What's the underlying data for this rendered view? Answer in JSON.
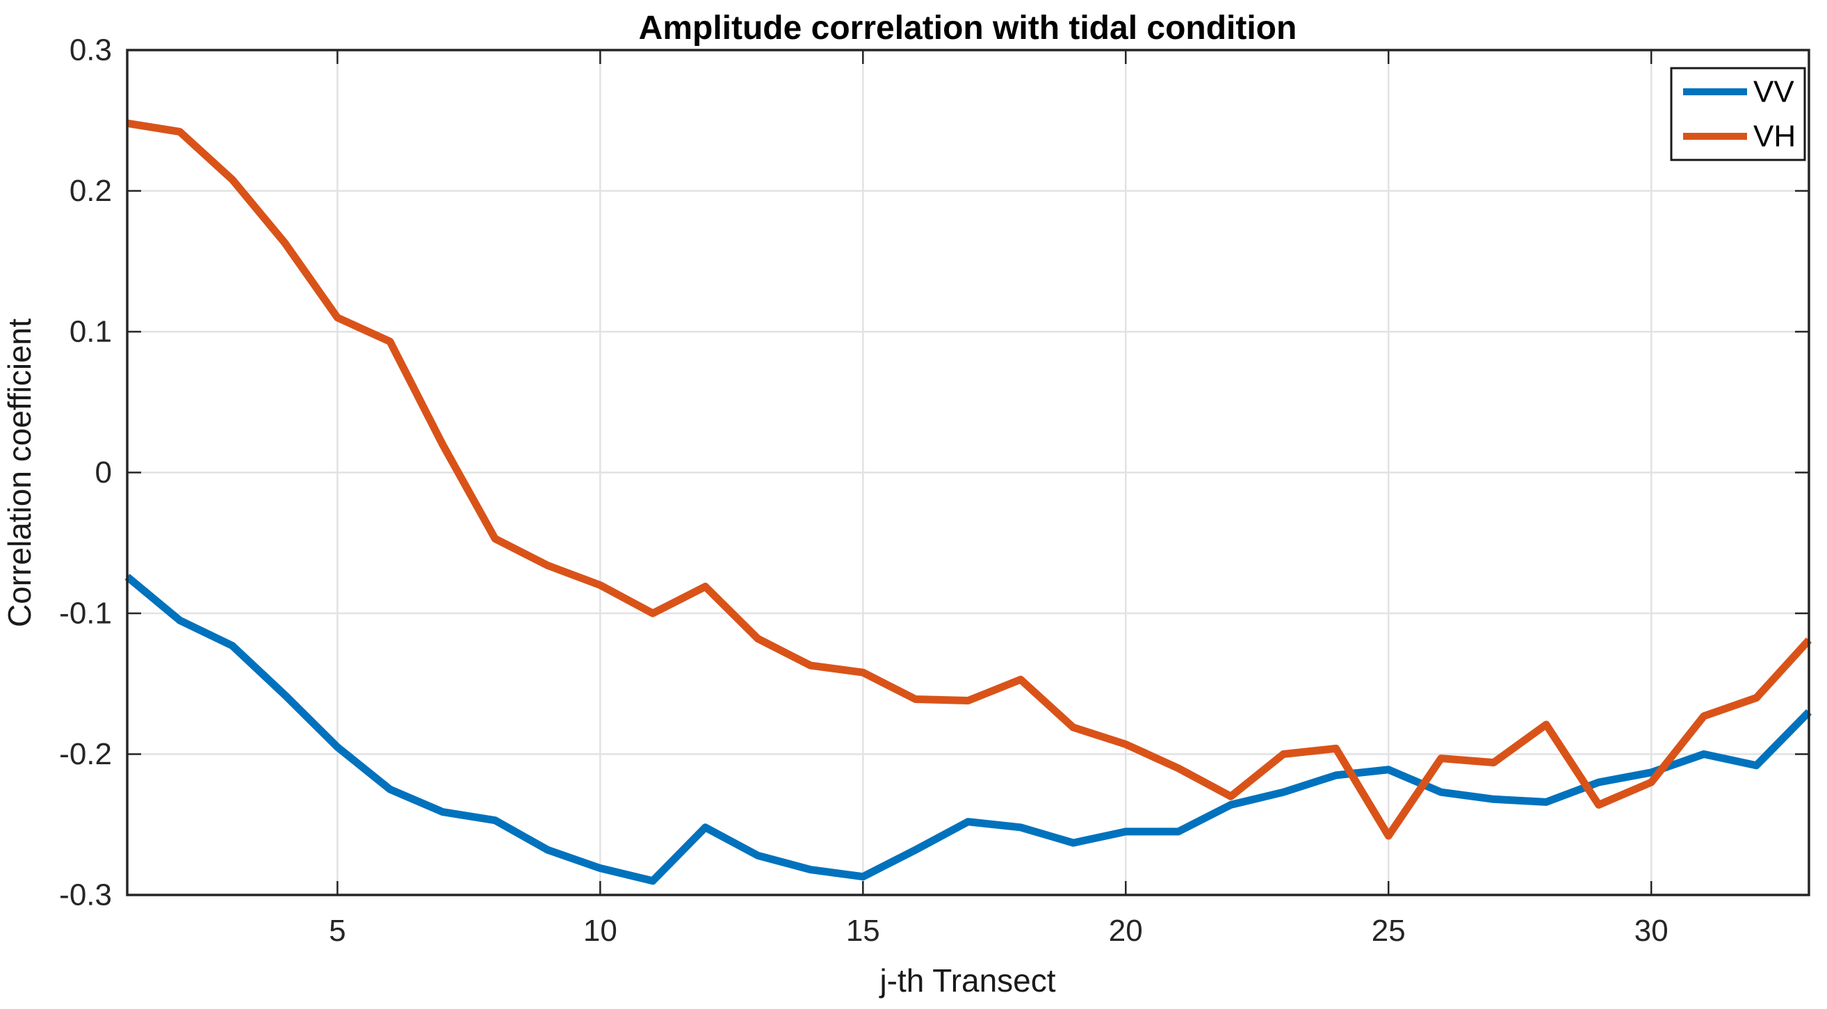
{
  "figure": {
    "title": "Amplitude correlation with tidal condition",
    "xlabel": "j-th Transect",
    "ylabel": "Correlation coefficient"
  },
  "chart_data": {
    "type": "line",
    "title": "Amplitude correlation with tidal condition",
    "xlabel": "j-th Transect",
    "ylabel": "Correlation coefficient",
    "xlim": [
      1,
      33
    ],
    "ylim": [
      -0.3,
      0.3
    ],
    "xticks": [
      5,
      10,
      15,
      20,
      25,
      30
    ],
    "yticks": [
      -0.3,
      -0.2,
      -0.1,
      0,
      0.1,
      0.2,
      0.3
    ],
    "ytick_labels": [
      "-0.3",
      "-0.2",
      "-0.1",
      "0",
      "0.1",
      "0.2",
      "0.3"
    ],
    "grid": true,
    "legend_position": "top-right",
    "axis_color": "#262626",
    "grid_color": "#e2e2e2",
    "x": [
      1,
      2,
      3,
      4,
      5,
      6,
      7,
      8,
      9,
      10,
      11,
      12,
      13,
      14,
      15,
      16,
      17,
      18,
      19,
      20,
      21,
      22,
      23,
      24,
      25,
      26,
      27,
      28,
      29,
      30,
      31,
      32,
      33
    ],
    "series": [
      {
        "name": "VV",
        "color": "#0072BD",
        "values": [
          -0.074,
          -0.105,
          -0.123,
          -0.158,
          -0.195,
          -0.225,
          -0.241,
          -0.247,
          -0.268,
          -0.281,
          -0.29,
          -0.252,
          -0.272,
          -0.282,
          -0.287,
          -0.268,
          -0.248,
          -0.252,
          -0.263,
          -0.255,
          -0.255,
          -0.236,
          -0.227,
          -0.215,
          -0.211,
          -0.227,
          -0.232,
          -0.234,
          -0.22,
          -0.213,
          -0.2,
          -0.208,
          -0.17
        ]
      },
      {
        "name": "VH",
        "color": "#D95319",
        "values": [
          0.248,
          0.242,
          0.208,
          0.163,
          0.11,
          0.093,
          0.02,
          -0.047,
          -0.066,
          -0.08,
          -0.1,
          -0.081,
          -0.118,
          -0.137,
          -0.142,
          -0.161,
          -0.162,
          -0.147,
          -0.181,
          -0.193,
          -0.21,
          -0.23,
          -0.2,
          -0.196,
          -0.258,
          -0.203,
          -0.206,
          -0.179,
          -0.236,
          -0.22,
          -0.173,
          -0.16,
          -0.119
        ]
      }
    ]
  }
}
